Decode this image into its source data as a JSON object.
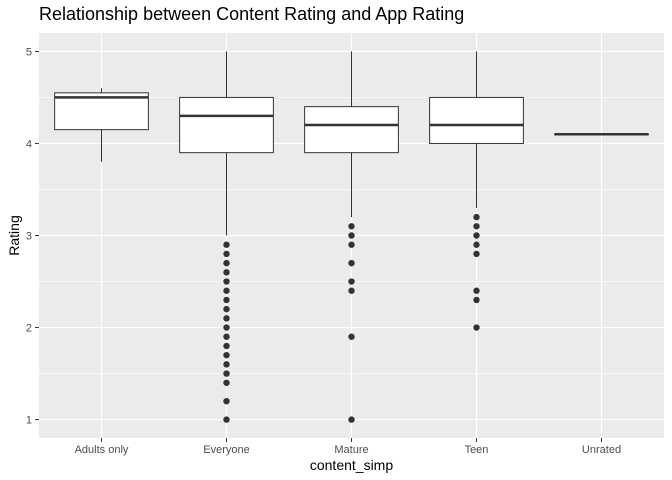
{
  "chart_data": {
    "type": "boxplot",
    "title": "Relationship between Content Rating and App Rating",
    "xlabel": "content_simp",
    "ylabel": "Rating",
    "categories": [
      "Adults only",
      "Everyone",
      "Mature",
      "Teen",
      "Unrated"
    ],
    "ylim": [
      0.8,
      5.2
    ],
    "yticks": [
      1,
      2,
      3,
      4,
      5
    ],
    "grid": true,
    "colors": {
      "panel": "#ebebeb",
      "grid": "#ffffff",
      "box_fill": "#ffffff",
      "stroke": "#333333"
    },
    "boxes": [
      {
        "category": "Adults only",
        "min": 3.8,
        "q1": 4.15,
        "median": 4.5,
        "q3": 4.55,
        "max": 4.6,
        "outliers": []
      },
      {
        "category": "Everyone",
        "min": 3.0,
        "q1": 3.9,
        "median": 4.3,
        "q3": 4.5,
        "max": 5.0,
        "outliers": [
          2.9,
          2.8,
          2.7,
          2.6,
          2.5,
          2.4,
          2.3,
          2.2,
          2.1,
          2.0,
          1.9,
          1.8,
          1.7,
          1.6,
          1.5,
          1.4,
          1.2,
          1.0
        ]
      },
      {
        "category": "Mature",
        "min": 3.2,
        "q1": 3.9,
        "median": 4.2,
        "q3": 4.4,
        "max": 5.0,
        "outliers": [
          3.1,
          3.0,
          2.9,
          2.7,
          2.5,
          2.4,
          1.9,
          1.0
        ]
      },
      {
        "category": "Teen",
        "min": 3.3,
        "q1": 4.0,
        "median": 4.2,
        "q3": 4.5,
        "max": 5.0,
        "outliers": [
          3.2,
          3.1,
          3.0,
          2.9,
          2.8,
          2.4,
          2.3,
          2.0
        ]
      },
      {
        "category": "Unrated",
        "min": 4.1,
        "q1": 4.1,
        "median": 4.1,
        "q3": 4.1,
        "max": 4.1,
        "outliers": []
      }
    ]
  }
}
